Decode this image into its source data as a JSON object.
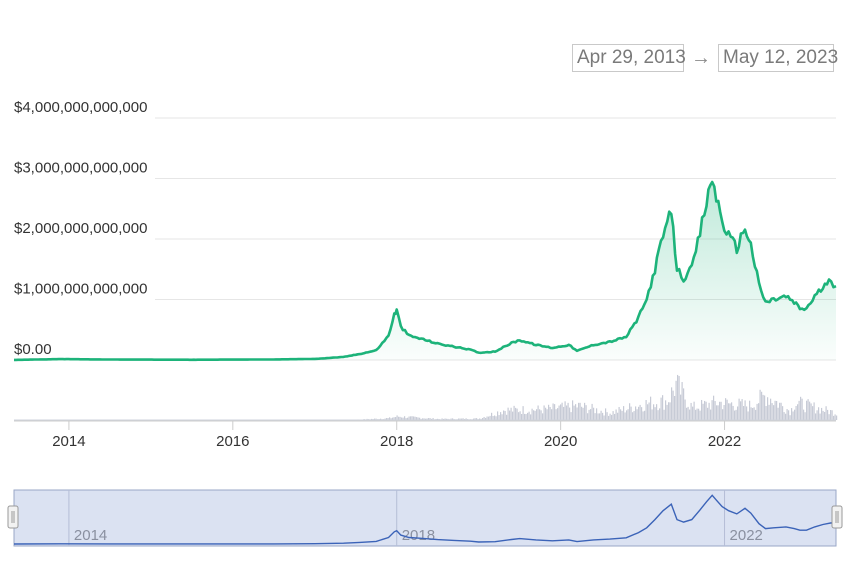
{
  "range_selector": {
    "start_label": "Apr 29, 2013",
    "arrow": "→",
    "end_label": "May 12, 2023"
  },
  "colors": {
    "price_line": "#1db37a",
    "navigator_line": "#3b63b8",
    "navigator_fill": "#dbe2f2",
    "volume_bars": "#c7cbd6",
    "grid": "#e6e6e6"
  },
  "chart_data": {
    "type": "area",
    "series": [
      {
        "values": [
          [
            2013.33,
            0.0016
          ],
          [
            2013.9,
            0.015
          ],
          [
            2014.5,
            0.008
          ],
          [
            2015.5,
            0.004
          ],
          [
            2016.5,
            0.009
          ],
          [
            2017.0,
            0.018
          ],
          [
            2017.35,
            0.05
          ],
          [
            2017.55,
            0.1
          ],
          [
            2017.75,
            0.16
          ],
          [
            2017.9,
            0.4
          ],
          [
            2017.97,
            0.75
          ],
          [
            2018.0,
            0.82
          ],
          [
            2018.05,
            0.55
          ],
          [
            2018.15,
            0.4
          ],
          [
            2018.3,
            0.35
          ],
          [
            2018.5,
            0.27
          ],
          [
            2018.7,
            0.22
          ],
          [
            2018.9,
            0.17
          ],
          [
            2019.0,
            0.12
          ],
          [
            2019.2,
            0.14
          ],
          [
            2019.4,
            0.28
          ],
          [
            2019.5,
            0.33
          ],
          [
            2019.7,
            0.25
          ],
          [
            2019.9,
            0.2
          ],
          [
            2020.1,
            0.25
          ],
          [
            2020.2,
            0.15
          ],
          [
            2020.4,
            0.25
          ],
          [
            2020.6,
            0.3
          ],
          [
            2020.8,
            0.38
          ],
          [
            2020.95,
            0.7
          ],
          [
            2021.05,
            1.0
          ],
          [
            2021.15,
            1.5
          ],
          [
            2021.25,
            2.05
          ],
          [
            2021.35,
            2.45
          ],
          [
            2021.42,
            1.5
          ],
          [
            2021.5,
            1.35
          ],
          [
            2021.6,
            1.5
          ],
          [
            2021.7,
            2.1
          ],
          [
            2021.78,
            2.6
          ],
          [
            2021.85,
            3.0
          ],
          [
            2021.9,
            2.7
          ],
          [
            2021.97,
            2.3
          ],
          [
            2022.05,
            2.05
          ],
          [
            2022.15,
            1.85
          ],
          [
            2022.25,
            2.2
          ],
          [
            2022.32,
            1.9
          ],
          [
            2022.42,
            1.25
          ],
          [
            2022.5,
            0.95
          ],
          [
            2022.6,
            1.0
          ],
          [
            2022.75,
            1.05
          ],
          [
            2022.85,
            0.95
          ],
          [
            2022.92,
            0.85
          ],
          [
            2023.0,
            0.85
          ],
          [
            2023.1,
            1.05
          ],
          [
            2023.2,
            1.2
          ],
          [
            2023.3,
            1.3
          ],
          [
            2023.36,
            1.22
          ]
        ]
      }
    ],
    "volume_series": {
      "values": [
        [
          2013.33,
          0.0
        ],
        [
          2016.8,
          0.0
        ],
        [
          2017.5,
          0.01
        ],
        [
          2017.9,
          0.05
        ],
        [
          2018.0,
          0.1
        ],
        [
          2018.5,
          0.03
        ],
        [
          2019.0,
          0.04
        ],
        [
          2019.3,
          0.28
        ],
        [
          2019.8,
          0.3
        ],
        [
          2020.2,
          0.4
        ],
        [
          2020.6,
          0.2
        ],
        [
          2021.0,
          0.45
        ],
        [
          2021.3,
          0.55
        ],
        [
          2021.4,
          1.0
        ],
        [
          2021.6,
          0.35
        ],
        [
          2021.9,
          0.5
        ],
        [
          2022.3,
          0.4
        ],
        [
          2022.5,
          0.7
        ],
        [
          2022.8,
          0.25
        ],
        [
          2022.85,
          0.5
        ],
        [
          2023.1,
          0.35
        ],
        [
          2023.36,
          0.2
        ]
      ]
    },
    "x_ticks": [
      "2014",
      "2016",
      "2018",
      "2020",
      "2022"
    ],
    "y_ticks": [
      "$0.00",
      "$1,000,000,000,000",
      "$2,000,000,000,000",
      "$3,000,000,000,000",
      "$4,000,000,000,000"
    ],
    "xlim": [
      2013.33,
      2023.36
    ],
    "ylim": [
      0,
      4
    ],
    "y_unit": "trillions of USD",
    "grid": true,
    "navigator": {
      "labels": [
        "2014",
        "2018",
        "2022"
      ]
    }
  }
}
